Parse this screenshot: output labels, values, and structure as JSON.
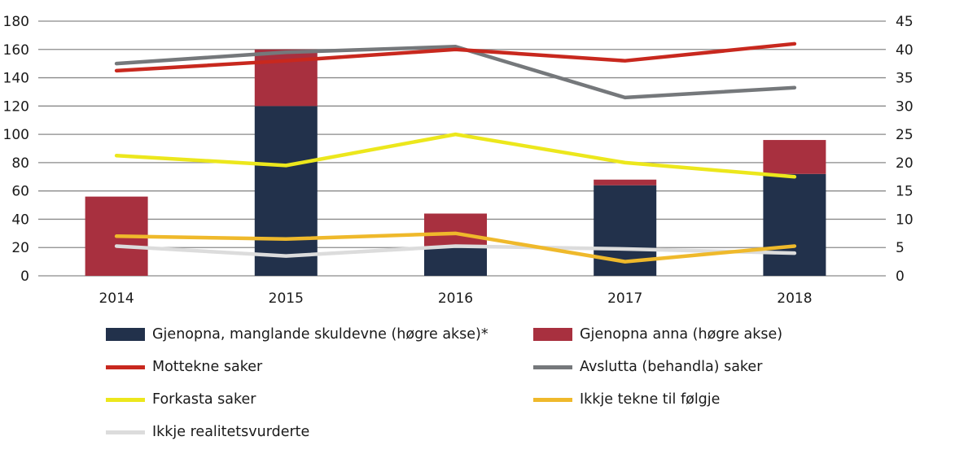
{
  "chart_data": {
    "type": "bar+line",
    "title": "",
    "categories": [
      "2014",
      "2015",
      "2016",
      "2017",
      "2018"
    ],
    "left_axis": {
      "ylim": [
        0,
        180
      ],
      "ticks": [
        "0",
        "20",
        "40",
        "60",
        "80",
        "100",
        "120",
        "140",
        "160",
        "180"
      ]
    },
    "right_axis": {
      "ylim": [
        0,
        45
      ],
      "ticks": [
        "0",
        "5",
        "10",
        "15",
        "20",
        "25",
        "30",
        "35",
        "40",
        "45"
      ]
    },
    "grid": true,
    "legend_placement": "bottom",
    "bars_stacked": [
      {
        "name": "Gjenopna, manglande skuldevne (høgre akse)*",
        "axis": "right",
        "color": "#22314b",
        "values": [
          0,
          30,
          5,
          16,
          18
        ]
      },
      {
        "name": "Gjenopna anna (høgre akse)",
        "axis": "right",
        "color": "#a8303f",
        "values": [
          14,
          10,
          6,
          1,
          6
        ]
      }
    ],
    "lines": [
      {
        "name": "Mottekne saker",
        "axis": "left",
        "color": "#c8281e",
        "values": [
          145,
          152,
          160,
          152,
          164
        ]
      },
      {
        "name": "Avslutta (behandla) saker",
        "axis": "left",
        "color": "#75787b",
        "values": [
          150,
          158,
          162,
          126,
          133
        ]
      },
      {
        "name": "Forkasta saker",
        "axis": "left",
        "color": "#ece71c",
        "values": [
          85,
          78,
          100,
          80,
          70
        ]
      },
      {
        "name": "Ikkje tekne til følgje",
        "axis": "left",
        "color": "#efb92b",
        "values": [
          28,
          26,
          30,
          10,
          21
        ]
      },
      {
        "name": "Ikkje realitetsvurderte",
        "axis": "left",
        "color": "#dcdcdc",
        "values": [
          21,
          14,
          21,
          19,
          16
        ]
      }
    ]
  }
}
